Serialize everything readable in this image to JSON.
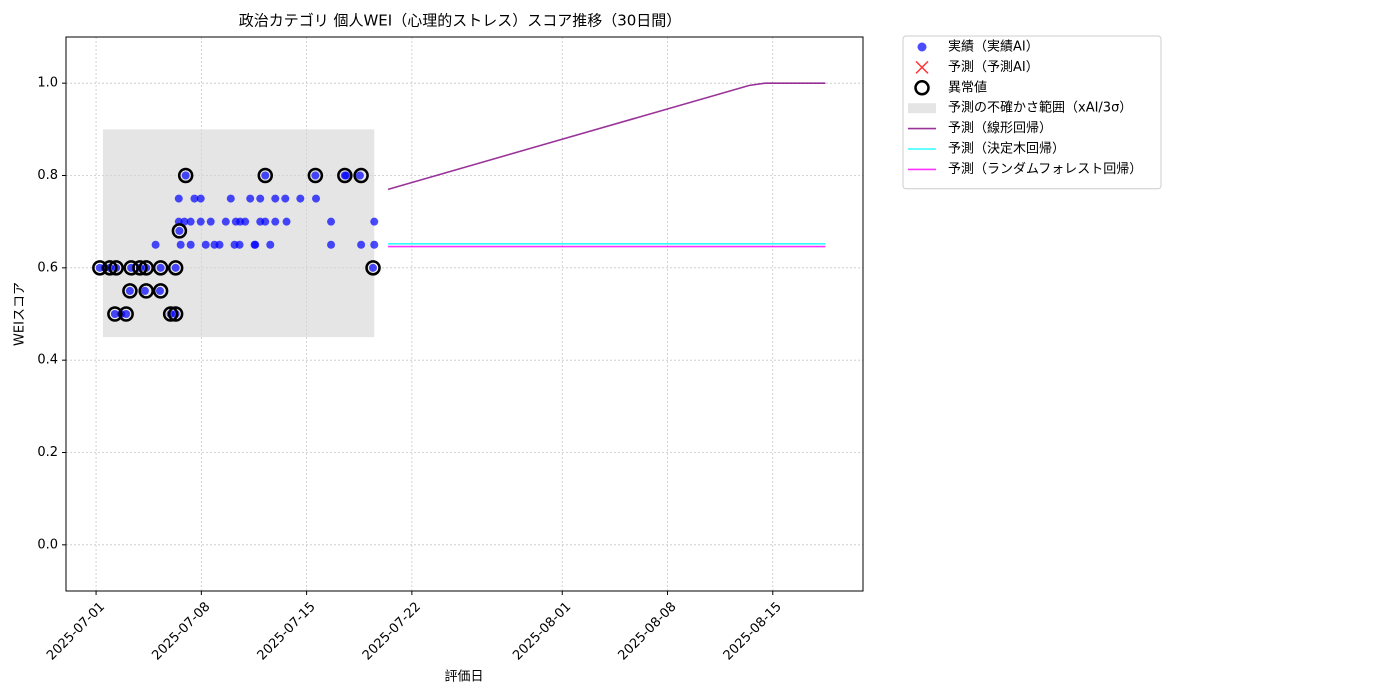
{
  "chart_data": {
    "type": "scatter",
    "title": "政治カテゴリ 個人WEI（心理的ストレス）スコア推移（30日間）",
    "x_label": "評価日",
    "y_label": "WEIスコア",
    "xlim": [
      "2025-06-29",
      "2025-08-21"
    ],
    "ylim": [
      -0.1,
      1.1
    ],
    "xticks": [
      "2025-07-01",
      "2025-07-08",
      "2025-07-15",
      "2025-07-22",
      "2025-08-01",
      "2025-08-08",
      "2025-08-15"
    ],
    "yticks": [
      {
        "value": 0,
        "label": "0.0"
      },
      {
        "value": 0.2,
        "label": "0.2"
      },
      {
        "value": 0.4,
        "label": "0.4"
      },
      {
        "value": 0.6,
        "label": "0.6"
      },
      {
        "value": 0.8,
        "label": "0.8"
      },
      {
        "value": 1,
        "label": "1.0"
      }
    ],
    "grid": true,
    "legend": "outside upper right",
    "series": [
      {
        "name": "実績（実績AI）",
        "type": "scatter",
        "color": "#0000ff",
        "x": [
          "2025-07-01T06:00",
          "2025-07-01T14:00",
          "2025-07-01T22:00",
          "2025-07-02T06:00",
          "2025-07-02T08:00",
          "2025-07-02T16:00",
          "2025-07-03T00:00",
          "2025-07-03T06:00",
          "2025-07-03T08:00",
          "2025-07-03T22:00",
          "2025-07-04T06:00",
          "2025-07-04T08:00",
          "2025-07-04T23:00",
          "2025-07-05T06:00",
          "2025-07-05T07:00",
          "2025-07-05T23:00",
          "2025-07-06T07:00",
          "2025-07-06T07:00",
          "2025-07-06T12:00",
          "2025-07-06T12:00",
          "2025-07-06T13:00",
          "2025-07-06T15:00",
          "2025-07-06T21:00",
          "2025-07-06T23:00",
          "2025-07-07T07:00",
          "2025-07-07T07:00",
          "2025-07-07T13:00",
          "2025-07-07T23:00",
          "2025-07-07T23:00",
          "2025-07-08T07:00",
          "2025-07-08T15:00",
          "2025-07-08T21:00",
          "2025-07-09T05:00",
          "2025-07-09T15:00",
          "2025-07-09T23:00",
          "2025-07-10T05:00",
          "2025-07-10T07:00",
          "2025-07-10T13:00",
          "2025-07-10T14:00",
          "2025-07-10T22:00",
          "2025-07-11T06:00",
          "2025-07-11T13:00",
          "2025-07-11T14:00",
          "2025-07-11T22:00",
          "2025-07-11T22:00",
          "2025-07-12T06:00",
          "2025-07-12T06:00",
          "2025-07-12T14:00",
          "2025-07-12T22:00",
          "2025-07-12T22:00",
          "2025-07-13T14:00",
          "2025-07-13T16:00",
          "2025-07-14T14:00",
          "2025-07-15T14:00",
          "2025-07-15T15:00",
          "2025-07-16T15:00",
          "2025-07-16T15:00",
          "2025-07-17T13:00",
          "2025-07-17T15:00",
          "2025-07-18T13:00",
          "2025-07-18T15:00",
          "2025-07-19T10:00",
          "2025-07-19T12:00",
          "2025-07-19T12:00"
        ],
        "values": [
          0.6,
          0.6,
          0.6,
          0.5,
          0.6,
          0.5,
          0.5,
          0.55,
          0.6,
          0.6,
          0.55,
          0.6,
          0.65,
          0.55,
          0.6,
          0.5,
          0.6,
          0.5,
          0.75,
          0.7,
          0.68,
          0.65,
          0.7,
          0.8,
          0.7,
          0.65,
          0.75,
          0.75,
          0.7,
          0.65,
          0.7,
          0.65,
          0.65,
          0.7,
          0.75,
          0.65,
          0.7,
          0.65,
          0.7,
          0.7,
          0.75,
          0.65,
          0.65,
          0.7,
          0.75,
          0.8,
          0.7,
          0.65,
          0.75,
          0.7,
          0.75,
          0.7,
          0.75,
          0.8,
          0.75,
          0.7,
          0.65,
          0.8,
          0.8,
          0.8,
          0.65,
          0.6,
          0.7,
          0.65
        ]
      },
      {
        "name": "予測（予測AI）",
        "type": "cross",
        "color": "#ff0000",
        "x": [],
        "values": []
      },
      {
        "name": "異常値",
        "type": "ring",
        "color": "#000000",
        "x": [
          "2025-07-01T06:00",
          "2025-07-01T22:00",
          "2025-07-02T06:00",
          "2025-07-02T08:00",
          "2025-07-03T00:00",
          "2025-07-03T06:00",
          "2025-07-03T08:00",
          "2025-07-03T22:00",
          "2025-07-04T08:00",
          "2025-07-04T08:00",
          "2025-07-05T07:00",
          "2025-07-05T07:00",
          "2025-07-05T23:00",
          "2025-07-06T07:00",
          "2025-07-06T07:00",
          "2025-07-06T13:00",
          "2025-07-06T23:00",
          "2025-07-12T06:00",
          "2025-07-15T14:00",
          "2025-07-17T13:00",
          "2025-07-18T15:00",
          "2025-07-19T10:00"
        ],
        "values": [
          0.6,
          0.6,
          0.5,
          0.6,
          0.5,
          0.55,
          0.6,
          0.6,
          0.6,
          0.55,
          0.6,
          0.55,
          0.5,
          0.5,
          0.6,
          0.68,
          0.8,
          0.8,
          0.8,
          0.8,
          0.8,
          0.6
        ]
      },
      {
        "name": "予測の不確かさ範囲（xAI/3σ）",
        "type": "band",
        "color": "#d3d3d3",
        "x": [
          "2025-07-01T11:00",
          "2025-07-19T12:00"
        ],
        "lower": [
          0.45,
          0.45
        ],
        "upper": [
          0.9,
          0.9
        ]
      },
      {
        "name": "予測（線形回帰）",
        "type": "line",
        "color": "#800080",
        "x": [
          "2025-07-20T10:00",
          "2025-08-13T10:00",
          "2025-08-14T12:00",
          "2025-08-18T12:00"
        ],
        "values": [
          0.77,
          0.995,
          1.0,
          1.0
        ]
      },
      {
        "name": "予測（決定木回帰）",
        "type": "line",
        "color": "#00ffff",
        "x": [
          "2025-07-20T10:00",
          "2025-08-18T12:00"
        ],
        "values": [
          0.652,
          0.652
        ]
      },
      {
        "name": "予測（ランダムフォレスト回帰）",
        "type": "line",
        "color": "#ff00ff",
        "x": [
          "2025-07-20T10:00",
          "2025-08-18T12:00"
        ],
        "values": [
          0.646,
          0.646
        ]
      }
    ]
  }
}
